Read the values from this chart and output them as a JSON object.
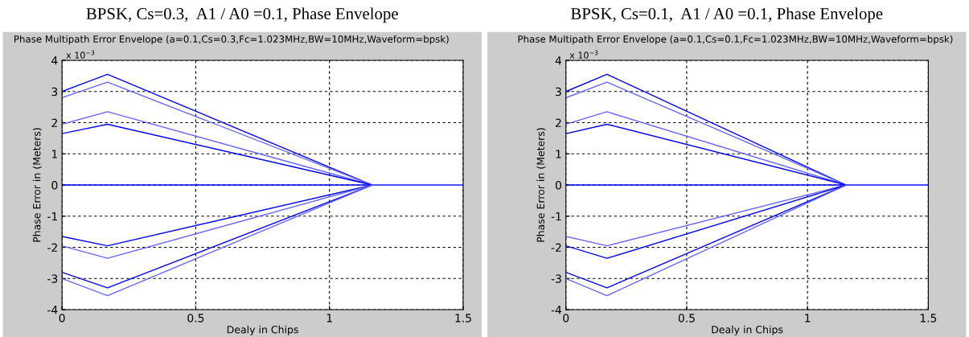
{
  "chart_data": [
    {
      "type": "line",
      "title": "BPSK, Cs=0.3,  A1 / A0 =0.1, Phase Envelope",
      "subtitle": "Phase Multipath Error Envelope (a=0.1,Cs=0.3,Fc=1.023MHz,BW=10MHz,Waveform=bpsk)",
      "xlabel": "Dealy in Chips",
      "ylabel": "Phase Error in (Meters)",
      "annotations": [
        "x 10$^{−3}$"
      ],
      "x": [
        0,
        0.17,
        1.16,
        1.5
      ],
      "series": [
        {
          "color": "#0000ff",
          "values": [
            3.0,
            3.55,
            0,
            0
          ]
        },
        {
          "color": "#6666ff",
          "values": [
            2.8,
            3.3,
            0,
            0
          ]
        },
        {
          "color": "#6666ff",
          "values": [
            1.95,
            2.35,
            0,
            0
          ]
        },
        {
          "color": "#0000ff",
          "values": [
            1.65,
            1.95,
            0,
            0
          ]
        },
        {
          "color": "#0000ff",
          "values": [
            0,
            0,
            0,
            0
          ]
        },
        {
          "color": "#0000ff",
          "values": [
            -1.65,
            -1.95,
            0,
            0
          ]
        },
        {
          "color": "#6666ff",
          "values": [
            -1.95,
            -2.35,
            0,
            0
          ]
        },
        {
          "color": "#0000ff",
          "values": [
            -2.8,
            -3.3,
            0,
            0
          ]
        },
        {
          "color": "#6666ff",
          "values": [
            -3.0,
            -3.55,
            0,
            0
          ]
        }
      ],
      "xlim": [
        0,
        1.5
      ],
      "xticks": [
        0,
        0.5,
        1,
        1.5
      ],
      "ylim": [
        -4,
        4
      ],
      "yticks": [
        -4,
        -3,
        -2,
        -1,
        0,
        1,
        2,
        3,
        4
      ],
      "grid": true,
      "line_style": "solid"
    },
    {
      "type": "line",
      "title": "BPSK, Cs=0.1,  A1 / A0 =0.1, Phase Envelope",
      "subtitle": "Phase Multipath Error Envelope (a=0.1,Cs=0.1,Fc=1.023MHz,BW=10MHz,Waveform=bpsk)",
      "xlabel": "Dealy in Chips",
      "ylabel": "Phase Error in (Meters)",
      "annotations": [
        "x 10$^{−3}$"
      ],
      "x": [
        0,
        0.17,
        1.16,
        1.5
      ],
      "series": [
        {
          "color": "#0000ff",
          "values": [
            3.0,
            3.55,
            0,
            0
          ]
        },
        {
          "color": "#6666ff",
          "values": [
            2.8,
            3.3,
            0,
            0
          ]
        },
        {
          "color": "#6666ff",
          "values": [
            1.95,
            2.35,
            0,
            0
          ]
        },
        {
          "color": "#0000ff",
          "values": [
            1.65,
            1.95,
            0,
            0
          ]
        },
        {
          "color": "#0000ff",
          "values": [
            0,
            0,
            0,
            0
          ]
        },
        {
          "color": "#6666ff",
          "values": [
            -1.65,
            -1.95,
            0,
            0
          ]
        },
        {
          "color": "#0000ff",
          "values": [
            -1.95,
            -2.35,
            0,
            0
          ]
        },
        {
          "color": "#0000ff",
          "values": [
            -2.8,
            -3.3,
            0,
            0
          ]
        },
        {
          "color": "#6666ff",
          "values": [
            -3.0,
            -3.55,
            0,
            0
          ]
        }
      ],
      "xlim": [
        0,
        1.5
      ],
      "xticks": [
        0,
        0.5,
        1,
        1.5
      ],
      "ylim": [
        -4,
        4
      ],
      "yticks": [
        -4,
        -3,
        -2,
        -1,
        0,
        1,
        2,
        3,
        4
      ],
      "grid": true,
      "line_style": "solid"
    }
  ]
}
